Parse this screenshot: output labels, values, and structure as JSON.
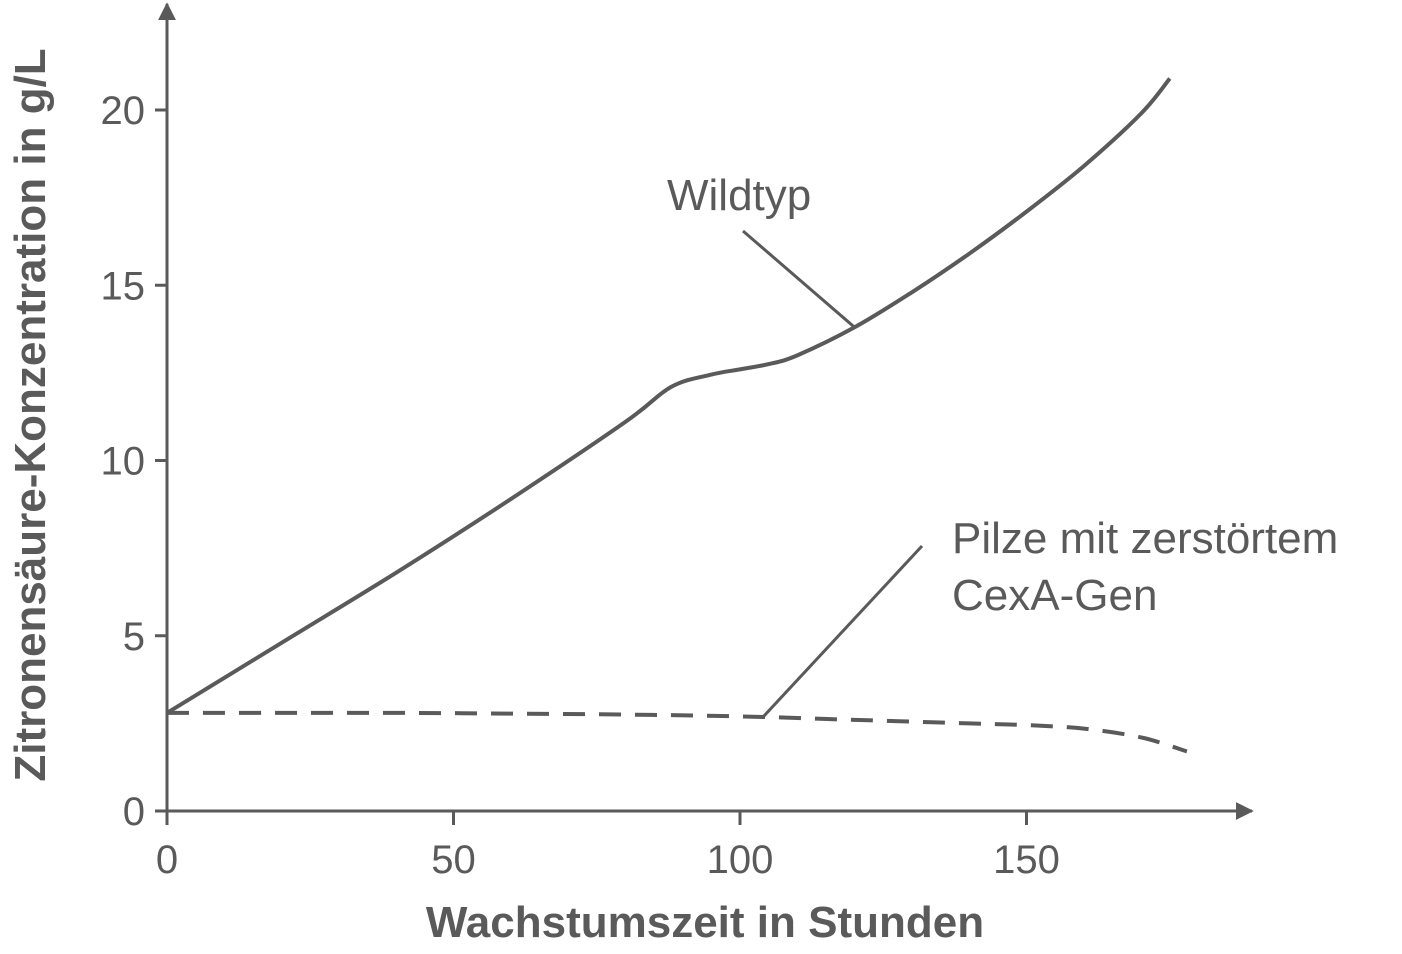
{
  "chart_data": {
    "type": "line",
    "xlabel": "Wachstumszeit in Stunden",
    "ylabel": "Zitronensäure-Konzentration in g/L",
    "xlim": [
      0,
      190
    ],
    "ylim": [
      0,
      23
    ],
    "x_ticks": [
      0,
      50,
      100,
      150
    ],
    "y_ticks": [
      0,
      5,
      10,
      15,
      20
    ],
    "grid": false,
    "legend": "none",
    "series": [
      {
        "name": "Wildtyp",
        "style": "solid",
        "color": "#5a5a5a",
        "x": [
          0,
          20,
          40,
          60,
          80,
          88,
          95,
          100,
          105,
          110,
          120,
          130,
          140,
          150,
          160,
          170,
          175
        ],
        "y": [
          2.8,
          4.8,
          6.8,
          8.9,
          11.1,
          12.1,
          12.45,
          12.6,
          12.75,
          13.0,
          13.8,
          14.8,
          15.9,
          17.1,
          18.4,
          19.9,
          20.9
        ]
      },
      {
        "name": "Pilze mit zerstörtem CexA-Gen",
        "style": "dashed",
        "color": "#5a5a5a",
        "x": [
          0,
          20,
          40,
          60,
          80,
          100,
          120,
          140,
          150,
          160,
          170,
          178
        ],
        "y": [
          2.8,
          2.8,
          2.8,
          2.78,
          2.75,
          2.7,
          2.6,
          2.5,
          2.45,
          2.35,
          2.1,
          1.7
        ]
      }
    ],
    "annotations": [
      {
        "series": 0,
        "lines": [
          "Wildtyp"
        ],
        "anchor_x": 120
      },
      {
        "series": 1,
        "lines": [
          "Pilze mit zerstörtem",
          "CexA-Gen"
        ],
        "anchor_x": 104
      }
    ]
  }
}
